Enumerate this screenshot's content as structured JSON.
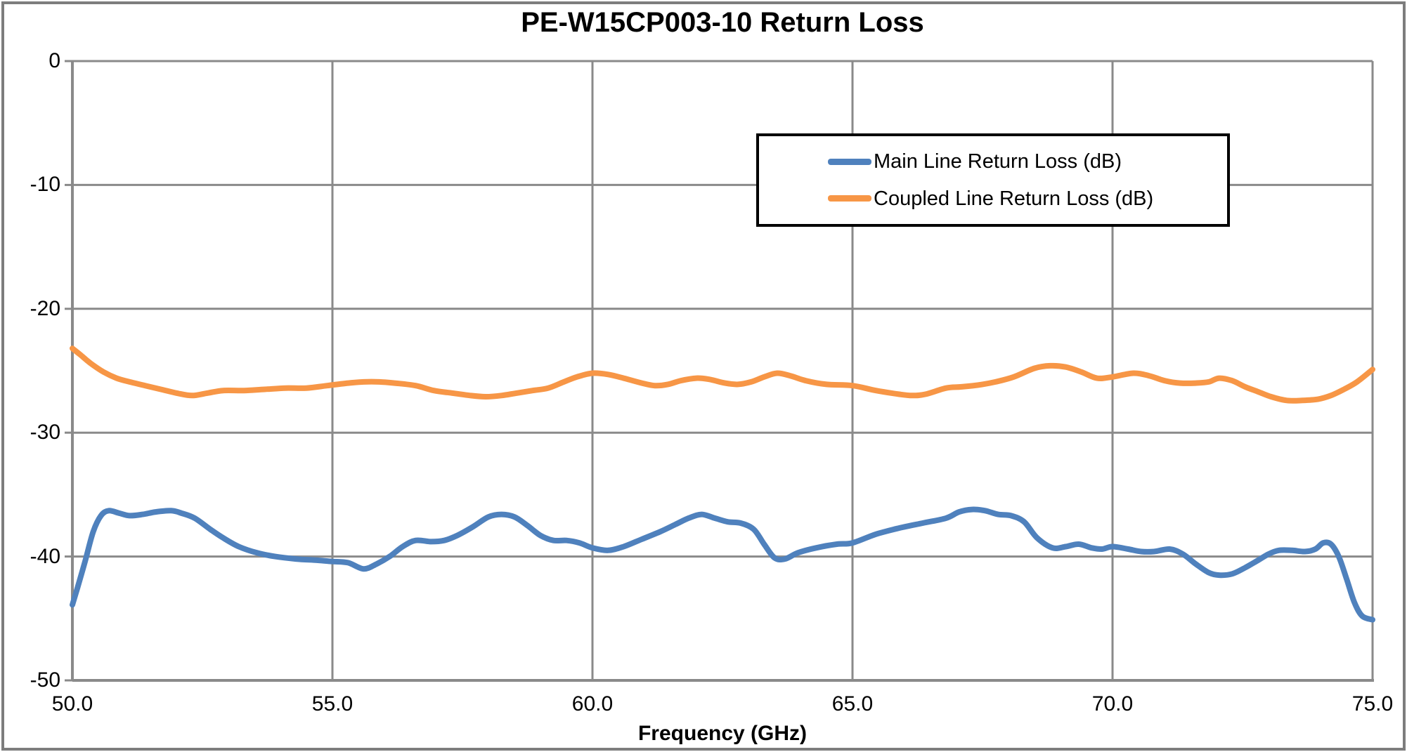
{
  "chart_data": {
    "type": "line",
    "title": "PE-W15CP003-10 Return Loss",
    "xlabel": "Frequency (GHz)",
    "ylabel": "",
    "xlim": [
      50,
      75
    ],
    "ylim": [
      -50,
      0
    ],
    "grid": true,
    "legend_position": "inside-top-right",
    "colors": {
      "main_line": "#4F81BD",
      "coupled_line": "#F79646",
      "gridline": "#8a8a8a",
      "axis": "#8a8a8a",
      "outer_border": "#7d7d7d",
      "legend_border": "#000000",
      "text": "#000000"
    },
    "x_ticks": [
      {
        "value": 50,
        "label": "50.0"
      },
      {
        "value": 55,
        "label": "55.0"
      },
      {
        "value": 60,
        "label": "60.0"
      },
      {
        "value": 65,
        "label": "65.0"
      },
      {
        "value": 70,
        "label": "70.0"
      },
      {
        "value": 75,
        "label": "75.0"
      }
    ],
    "y_ticks": [
      {
        "value": 0,
        "label": "0"
      },
      {
        "value": -10,
        "label": "-10"
      },
      {
        "value": -20,
        "label": "-20"
      },
      {
        "value": -30,
        "label": "-30"
      },
      {
        "value": -40,
        "label": "-40"
      },
      {
        "value": -50,
        "label": "-50"
      }
    ],
    "series": [
      {
        "name": "Main Line Return Loss (dB)",
        "color": "#4F81BD",
        "points": [
          [
            50.0,
            -43.9
          ],
          [
            50.1,
            -42.5
          ],
          [
            50.25,
            -40.3
          ],
          [
            50.4,
            -38.0
          ],
          [
            50.55,
            -36.7
          ],
          [
            50.7,
            -36.3
          ],
          [
            50.9,
            -36.5
          ],
          [
            51.1,
            -36.7
          ],
          [
            51.35,
            -36.6
          ],
          [
            51.6,
            -36.4
          ],
          [
            51.9,
            -36.3
          ],
          [
            52.1,
            -36.5
          ],
          [
            52.35,
            -36.9
          ],
          [
            52.65,
            -37.8
          ],
          [
            52.9,
            -38.5
          ],
          [
            53.2,
            -39.2
          ],
          [
            53.55,
            -39.7
          ],
          [
            53.9,
            -40.0
          ],
          [
            54.3,
            -40.2
          ],
          [
            54.7,
            -40.3
          ],
          [
            55.0,
            -40.4
          ],
          [
            55.3,
            -40.5
          ],
          [
            55.6,
            -41.0
          ],
          [
            55.85,
            -40.6
          ],
          [
            56.1,
            -40.0
          ],
          [
            56.35,
            -39.2
          ],
          [
            56.6,
            -38.7
          ],
          [
            56.9,
            -38.8
          ],
          [
            57.15,
            -38.7
          ],
          [
            57.4,
            -38.3
          ],
          [
            57.7,
            -37.6
          ],
          [
            58.0,
            -36.8
          ],
          [
            58.25,
            -36.6
          ],
          [
            58.5,
            -36.8
          ],
          [
            58.75,
            -37.5
          ],
          [
            59.0,
            -38.3
          ],
          [
            59.25,
            -38.7
          ],
          [
            59.5,
            -38.7
          ],
          [
            59.75,
            -38.9
          ],
          [
            60.0,
            -39.3
          ],
          [
            60.3,
            -39.5
          ],
          [
            60.6,
            -39.2
          ],
          [
            60.95,
            -38.6
          ],
          [
            61.3,
            -38.0
          ],
          [
            61.6,
            -37.4
          ],
          [
            61.85,
            -36.9
          ],
          [
            62.1,
            -36.6
          ],
          [
            62.35,
            -36.9
          ],
          [
            62.6,
            -37.2
          ],
          [
            62.85,
            -37.3
          ],
          [
            63.1,
            -37.8
          ],
          [
            63.3,
            -39.0
          ],
          [
            63.5,
            -40.1
          ],
          [
            63.7,
            -40.2
          ],
          [
            63.95,
            -39.7
          ],
          [
            64.3,
            -39.3
          ],
          [
            64.7,
            -39.0
          ],
          [
            65.0,
            -38.9
          ],
          [
            65.45,
            -38.2
          ],
          [
            65.9,
            -37.7
          ],
          [
            66.35,
            -37.3
          ],
          [
            66.8,
            -36.9
          ],
          [
            67.05,
            -36.4
          ],
          [
            67.3,
            -36.2
          ],
          [
            67.55,
            -36.3
          ],
          [
            67.8,
            -36.6
          ],
          [
            68.05,
            -36.7
          ],
          [
            68.3,
            -37.2
          ],
          [
            68.55,
            -38.5
          ],
          [
            68.85,
            -39.3
          ],
          [
            69.1,
            -39.2
          ],
          [
            69.35,
            -39.0
          ],
          [
            69.6,
            -39.3
          ],
          [
            69.8,
            -39.4
          ],
          [
            70.0,
            -39.2
          ],
          [
            70.3,
            -39.4
          ],
          [
            70.55,
            -39.6
          ],
          [
            70.8,
            -39.6
          ],
          [
            71.1,
            -39.4
          ],
          [
            71.35,
            -39.8
          ],
          [
            71.6,
            -40.6
          ],
          [
            71.85,
            -41.3
          ],
          [
            72.05,
            -41.5
          ],
          [
            72.3,
            -41.4
          ],
          [
            72.55,
            -40.9
          ],
          [
            72.8,
            -40.3
          ],
          [
            73.0,
            -39.8
          ],
          [
            73.2,
            -39.5
          ],
          [
            73.45,
            -39.5
          ],
          [
            73.7,
            -39.6
          ],
          [
            73.9,
            -39.4
          ],
          [
            74.05,
            -38.9
          ],
          [
            74.2,
            -39.0
          ],
          [
            74.35,
            -40.0
          ],
          [
            74.5,
            -41.8
          ],
          [
            74.65,
            -43.7
          ],
          [
            74.8,
            -44.8
          ],
          [
            75.0,
            -45.1
          ]
        ]
      },
      {
        "name": "Coupled Line Return Loss (dB)",
        "color": "#F79646",
        "points": [
          [
            50.0,
            -23.2
          ],
          [
            50.15,
            -23.7
          ],
          [
            50.35,
            -24.4
          ],
          [
            50.6,
            -25.1
          ],
          [
            50.85,
            -25.6
          ],
          [
            51.1,
            -25.9
          ],
          [
            51.4,
            -26.2
          ],
          [
            51.7,
            -26.5
          ],
          [
            52.0,
            -26.8
          ],
          [
            52.3,
            -27.0
          ],
          [
            52.6,
            -26.8
          ],
          [
            52.9,
            -26.6
          ],
          [
            53.3,
            -26.6
          ],
          [
            53.7,
            -26.5
          ],
          [
            54.1,
            -26.4
          ],
          [
            54.5,
            -26.4
          ],
          [
            54.9,
            -26.2
          ],
          [
            55.3,
            -26.0
          ],
          [
            55.6,
            -25.9
          ],
          [
            55.9,
            -25.9
          ],
          [
            56.2,
            -26.0
          ],
          [
            56.6,
            -26.2
          ],
          [
            56.95,
            -26.6
          ],
          [
            57.3,
            -26.8
          ],
          [
            57.65,
            -27.0
          ],
          [
            57.95,
            -27.1
          ],
          [
            58.25,
            -27.0
          ],
          [
            58.55,
            -26.8
          ],
          [
            58.85,
            -26.6
          ],
          [
            59.15,
            -26.4
          ],
          [
            59.45,
            -25.9
          ],
          [
            59.7,
            -25.5
          ],
          [
            60.0,
            -25.2
          ],
          [
            60.3,
            -25.3
          ],
          [
            60.6,
            -25.6
          ],
          [
            60.95,
            -26.0
          ],
          [
            61.2,
            -26.2
          ],
          [
            61.45,
            -26.1
          ],
          [
            61.7,
            -25.8
          ],
          [
            62.0,
            -25.6
          ],
          [
            62.25,
            -25.7
          ],
          [
            62.55,
            -26.0
          ],
          [
            62.8,
            -26.1
          ],
          [
            63.05,
            -25.9
          ],
          [
            63.3,
            -25.5
          ],
          [
            63.55,
            -25.2
          ],
          [
            63.8,
            -25.4
          ],
          [
            64.1,
            -25.8
          ],
          [
            64.5,
            -26.1
          ],
          [
            65.0,
            -26.2
          ],
          [
            65.45,
            -26.6
          ],
          [
            65.9,
            -26.9
          ],
          [
            66.15,
            -27.0
          ],
          [
            66.4,
            -26.9
          ],
          [
            66.8,
            -26.4
          ],
          [
            67.1,
            -26.3
          ],
          [
            67.5,
            -26.1
          ],
          [
            67.75,
            -25.9
          ],
          [
            68.1,
            -25.5
          ],
          [
            68.5,
            -24.8
          ],
          [
            68.8,
            -24.6
          ],
          [
            69.1,
            -24.7
          ],
          [
            69.4,
            -25.1
          ],
          [
            69.7,
            -25.6
          ],
          [
            70.0,
            -25.5
          ],
          [
            70.4,
            -25.2
          ],
          [
            70.7,
            -25.4
          ],
          [
            71.0,
            -25.8
          ],
          [
            71.3,
            -26.0
          ],
          [
            71.6,
            -26.0
          ],
          [
            71.85,
            -25.9
          ],
          [
            72.05,
            -25.6
          ],
          [
            72.3,
            -25.8
          ],
          [
            72.55,
            -26.3
          ],
          [
            72.8,
            -26.7
          ],
          [
            73.05,
            -27.1
          ],
          [
            73.35,
            -27.4
          ],
          [
            73.65,
            -27.4
          ],
          [
            73.95,
            -27.3
          ],
          [
            74.2,
            -27.0
          ],
          [
            74.45,
            -26.5
          ],
          [
            74.7,
            -25.9
          ],
          [
            75.0,
            -24.9
          ]
        ]
      }
    ]
  }
}
